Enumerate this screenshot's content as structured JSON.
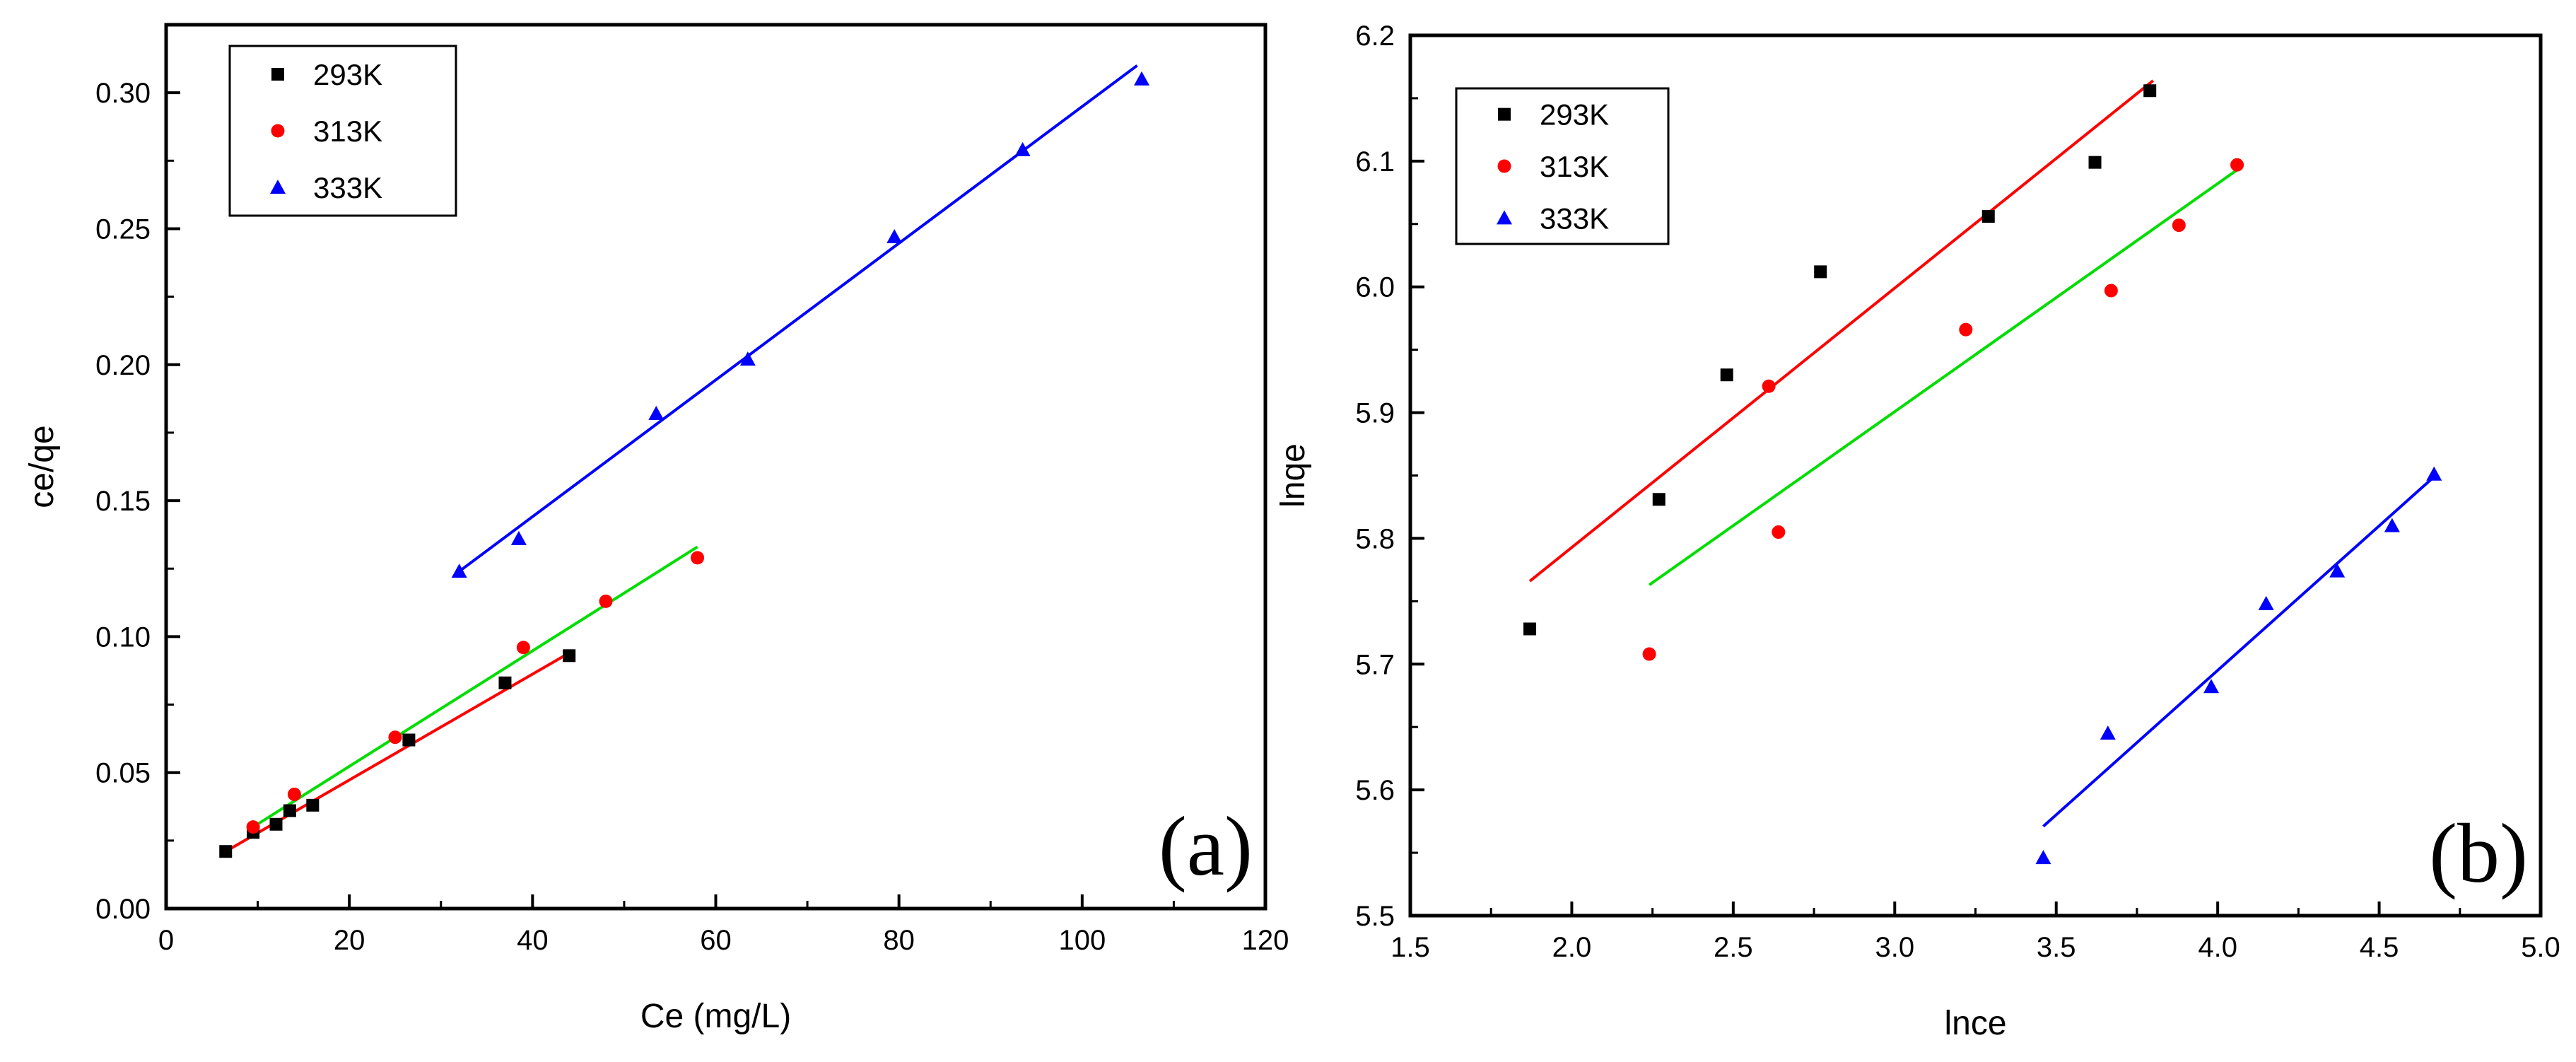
{
  "chart_data": [
    {
      "type": "scatter",
      "panel_label": "(a)",
      "xlabel": "Ce (mg/L)",
      "ylabel": "ce/qe",
      "xlim": [
        0,
        120
      ],
      "ylim": [
        0.0,
        0.325
      ],
      "xticks": [
        0,
        20,
        40,
        60,
        80,
        100,
        120
      ],
      "yticks": [
        0.0,
        0.05,
        0.1,
        0.15,
        0.2,
        0.25,
        0.3
      ],
      "xtick_labels": [
        "0",
        "20",
        "40",
        "60",
        "80",
        "100",
        "120"
      ],
      "ytick_labels": [
        "0.00",
        "0.05",
        "0.10",
        "0.15",
        "0.20",
        "0.25",
        "0.30"
      ],
      "legend_position": "top-left",
      "series": [
        {
          "name": "293K",
          "marker": "square",
          "color": "#000000",
          "points": [
            [
              6.5,
              0.021
            ],
            [
              9.5,
              0.028
            ],
            [
              12,
              0.031
            ],
            [
              13.5,
              0.036
            ],
            [
              16,
              0.038
            ],
            [
              26.5,
              0.062
            ],
            [
              37,
              0.083
            ],
            [
              44,
              0.093
            ]
          ]
        },
        {
          "name": "313K",
          "marker": "circle",
          "color": "#ff0000",
          "points": [
            [
              9.5,
              0.03
            ],
            [
              14,
              0.042
            ],
            [
              25,
              0.063
            ],
            [
              39,
              0.096
            ],
            [
              48,
              0.113
            ],
            [
              58,
              0.129
            ]
          ]
        },
        {
          "name": "333K",
          "marker": "triangle",
          "color": "#0000ff",
          "points": [
            [
              32,
              0.124
            ],
            [
              38.5,
              0.136
            ],
            [
              53.5,
              0.182
            ],
            [
              63.5,
              0.202
            ],
            [
              79.5,
              0.247
            ],
            [
              93.5,
              0.279
            ],
            [
              106.5,
              0.305
            ]
          ]
        }
      ],
      "fit_lines": [
        {
          "color": "#ff0000",
          "from": [
            6.5,
            0.021
          ],
          "to": [
            44,
            0.094
          ]
        },
        {
          "color": "#00dd00",
          "from": [
            9.5,
            0.03
          ],
          "to": [
            58,
            0.133
          ]
        },
        {
          "color": "#0000ff",
          "from": [
            32,
            0.124
          ],
          "to": [
            106,
            0.31
          ]
        }
      ]
    },
    {
      "type": "scatter",
      "panel_label": "(b)",
      "xlabel": "lnce",
      "ylabel": "lnqe",
      "xlim": [
        1.5,
        5.0
      ],
      "ylim": [
        5.5,
        6.2
      ],
      "xticks": [
        1.5,
        2.0,
        2.5,
        3.0,
        3.5,
        4.0,
        4.5,
        5.0
      ],
      "yticks": [
        5.5,
        5.6,
        5.7,
        5.8,
        5.9,
        6.0,
        6.1,
        6.2
      ],
      "xtick_labels": [
        "1.5",
        "2.0",
        "2.5",
        "3.0",
        "3.5",
        "4.0",
        "4.5",
        "5.0"
      ],
      "ytick_labels": [
        "5.5",
        "5.6",
        "5.7",
        "5.8",
        "5.9",
        "6.0",
        "6.1",
        "6.2"
      ],
      "legend_position": "top-left",
      "series": [
        {
          "name": "293K",
          "marker": "square",
          "color": "#000000",
          "points": [
            [
              1.87,
              5.728
            ],
            [
              2.27,
              5.831
            ],
            [
              2.48,
              5.93
            ],
            [
              2.77,
              6.012
            ],
            [
              3.29,
              6.056
            ],
            [
              3.62,
              6.099
            ],
            [
              3.79,
              6.156
            ]
          ]
        },
        {
          "name": "313K",
          "marker": "circle",
          "color": "#ff0000",
          "points": [
            [
              2.24,
              5.708
            ],
            [
              2.61,
              5.921
            ],
            [
              2.64,
              5.805
            ],
            [
              3.22,
              5.966
            ],
            [
              3.67,
              5.997
            ],
            [
              3.88,
              6.049
            ],
            [
              4.06,
              6.097
            ]
          ]
        },
        {
          "name": "333K",
          "marker": "triangle",
          "color": "#0000ff",
          "points": [
            [
              3.46,
              5.546
            ],
            [
              3.66,
              5.645
            ],
            [
              3.98,
              5.682
            ],
            [
              4.15,
              5.748
            ],
            [
              4.37,
              5.774
            ],
            [
              4.54,
              5.81
            ],
            [
              4.67,
              5.851
            ]
          ]
        }
      ],
      "fit_lines": [
        {
          "color": "#ff0000",
          "from": [
            1.87,
            5.766
          ],
          "to": [
            3.8,
            6.164
          ]
        },
        {
          "color": "#00dd00",
          "from": [
            2.24,
            5.763
          ],
          "to": [
            4.06,
            6.093
          ]
        },
        {
          "color": "#0000ff",
          "from": [
            3.46,
            5.571
          ],
          "to": [
            4.67,
            5.849
          ]
        }
      ]
    }
  ]
}
